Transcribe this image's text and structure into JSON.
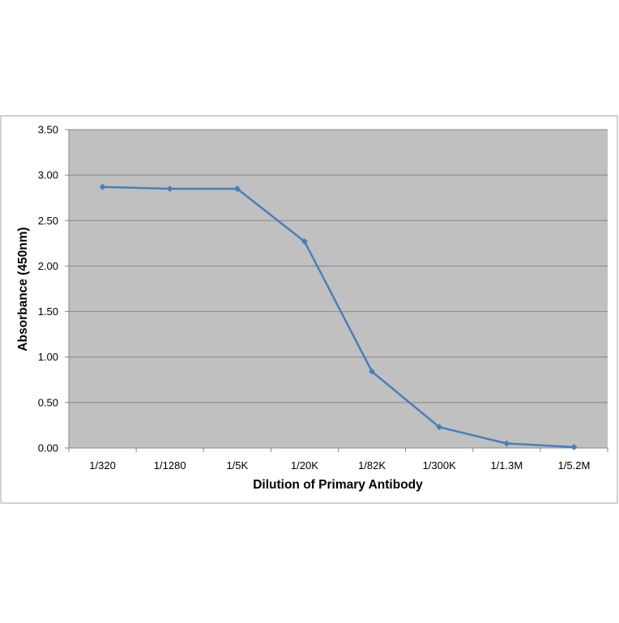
{
  "chart_data": {
    "type": "line",
    "title": "",
    "xlabel": "Dilution of Primary Antibody",
    "ylabel": "Absorbance (450nm)",
    "categories": [
      "1/320",
      "1/1280",
      "1/5K",
      "1/20K",
      "1/82K",
      "1/300K",
      "1/1.3M",
      "1/5.2M"
    ],
    "series": [
      {
        "values": [
          2.87,
          2.85,
          2.85,
          2.27,
          0.84,
          0.23,
          0.05,
          0.01
        ]
      }
    ],
    "ylim": [
      0,
      3.5
    ],
    "yticks": [
      "0.00",
      "0.50",
      "1.00",
      "1.50",
      "2.00",
      "2.50",
      "3.00",
      "3.50"
    ],
    "grid": true,
    "legend": "none",
    "colors": {
      "line": "#4a7ebb",
      "plot_background": "#c0c0c0",
      "gridline": "#878787",
      "frame": "#a6a6a6"
    }
  }
}
